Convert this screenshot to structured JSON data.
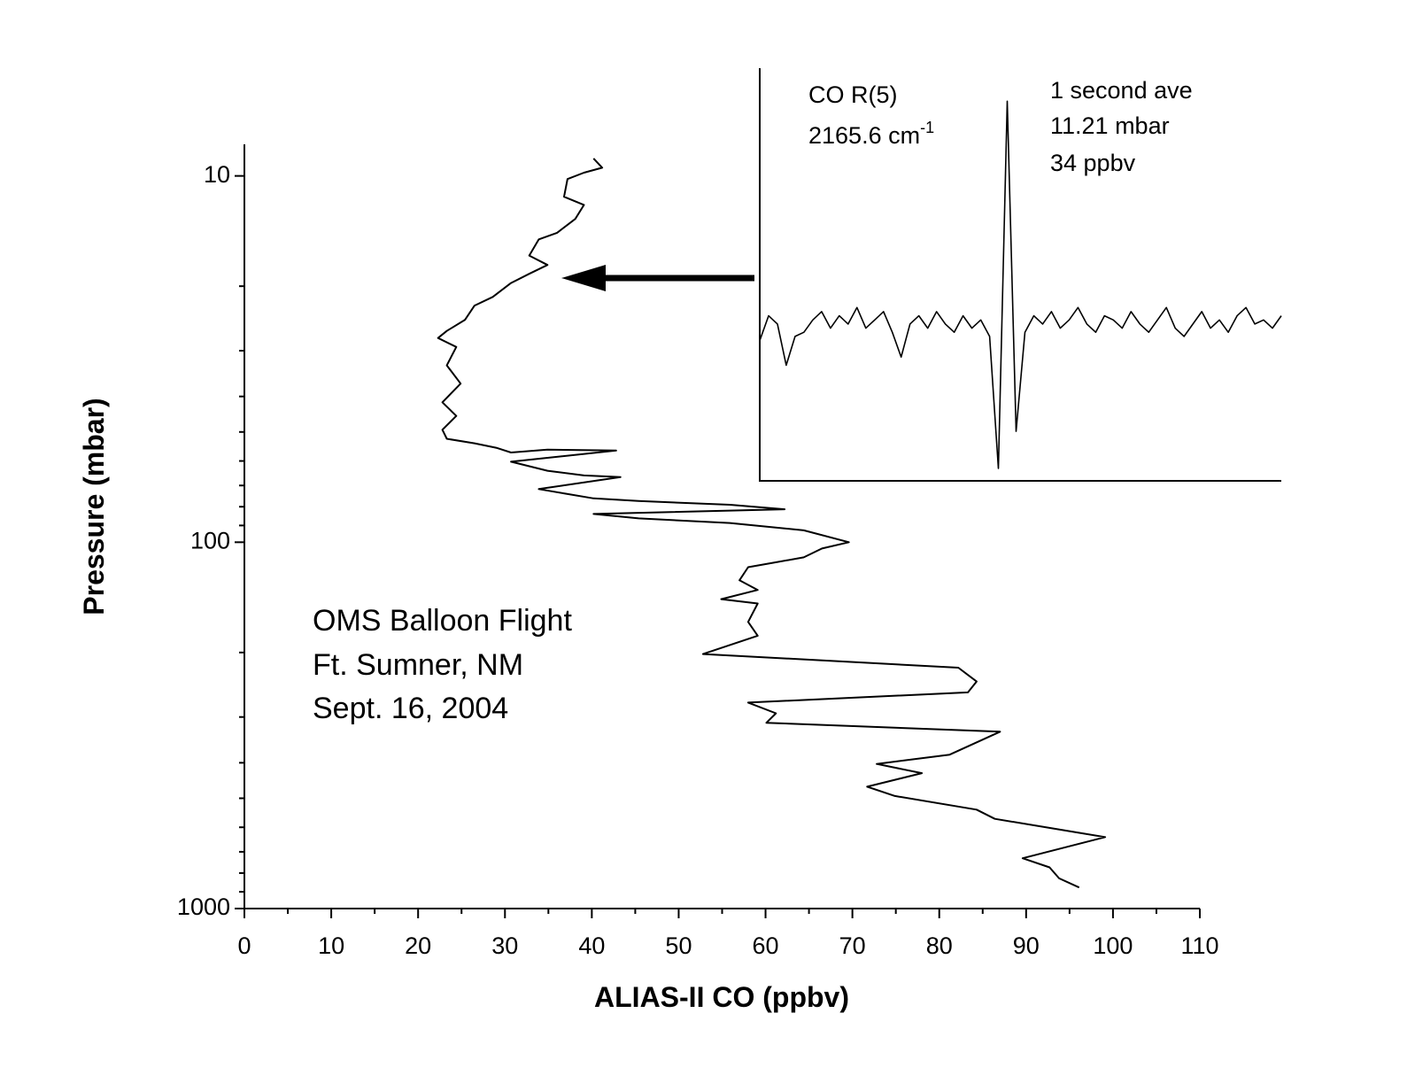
{
  "chart_data": [
    {
      "type": "line",
      "x_label": "ALIAS-II CO  (ppbv)",
      "y_label": "Pressure (mbar)",
      "annotations": [
        "OMS Balloon Flight",
        "Ft. Sumner, NM",
        "Sept. 16, 2004"
      ],
      "xlim": [
        0,
        110
      ],
      "xticks": [
        0,
        10,
        20,
        30,
        40,
        50,
        60,
        70,
        80,
        90,
        100,
        110
      ],
      "xticks_minor": [
        5,
        15,
        25,
        35,
        45,
        55,
        65,
        75,
        85,
        95,
        105
      ],
      "ylim": [
        1000,
        8.2
      ],
      "y_log": true,
      "yticks": [
        10,
        100,
        1000
      ],
      "yticks_minor": [
        20,
        30,
        40,
        50,
        60,
        70,
        80,
        90,
        200,
        300,
        400,
        500,
        600,
        700,
        800,
        900
      ],
      "color": "#000000",
      "x": [
        40.2,
        41.2,
        39.1,
        37.2,
        36.8,
        39.1,
        38.1,
        36.0,
        33.9,
        32.8,
        34.9,
        32.8,
        30.7,
        28.6,
        26.5,
        25.4,
        23.3,
        22.3,
        24.4,
        23.3,
        24.9,
        22.8,
        24.4,
        22.8,
        23.3,
        26.5,
        29.1,
        30.7,
        34.9,
        42.8,
        30.7,
        34.9,
        39.1,
        43.3,
        33.9,
        37.0,
        40.2,
        45.4,
        55.9,
        62.2,
        40.2,
        45.4,
        55.9,
        64.4,
        69.6,
        66.5,
        64.4,
        58.0,
        57.0,
        59.1,
        54.9,
        59.1,
        58.0,
        59.1,
        52.8,
        82.2,
        84.3,
        83.3,
        58.0,
        61.2,
        60.1,
        87.0,
        81.2,
        72.8,
        78.0,
        71.7,
        74.9,
        84.3,
        86.4,
        95.9,
        99.1,
        89.6,
        92.7,
        93.8,
        96.1
      ],
      "values": [
        8.96,
        9.5,
        9.8,
        10.2,
        11.4,
        12.0,
        13.1,
        14.3,
        14.9,
        16.5,
        17.5,
        18.5,
        19.6,
        21.4,
        22.6,
        24.7,
        26.5,
        27.7,
        29.3,
        32.9,
        36.9,
        41.5,
        45.2,
        49.3,
        52.2,
        53.7,
        55.3,
        56.9,
        55.9,
        56.2,
        60.3,
        63.8,
        65.7,
        66.4,
        71.6,
        73.7,
        75.9,
        77.2,
        79.0,
        81.3,
        83.7,
        86.1,
        88.6,
        92.8,
        100,
        104,
        110,
        117,
        127,
        135,
        143,
        147,
        165,
        180,
        202,
        220,
        240,
        257,
        274,
        293,
        311,
        329,
        380,
        403,
        427,
        465,
        493,
        537,
        569,
        620,
        638,
        729,
        772,
        827,
        876
      ]
    },
    {
      "type": "line",
      "annotations": [
        "CO R(5)",
        "2165.6 cm",
        "-1",
        "1 second ave",
        "11.21 mbar",
        "34 ppbv"
      ],
      "ylim": [
        0,
        100
      ],
      "color": "#000000",
      "values": [
        34,
        40,
        38,
        28,
        35,
        36,
        39,
        41,
        37,
        40,
        38,
        42,
        37,
        39,
        41,
        36,
        30,
        38,
        40,
        37,
        41,
        38,
        36,
        40,
        37,
        39,
        35,
        3,
        92,
        12,
        36,
        40,
        38,
        41,
        37,
        39,
        42,
        38,
        36,
        40,
        39,
        37,
        41,
        38,
        36,
        39,
        42,
        37,
        35,
        38,
        41,
        37,
        39,
        36,
        40,
        42,
        38,
        39,
        37,
        40
      ]
    }
  ]
}
